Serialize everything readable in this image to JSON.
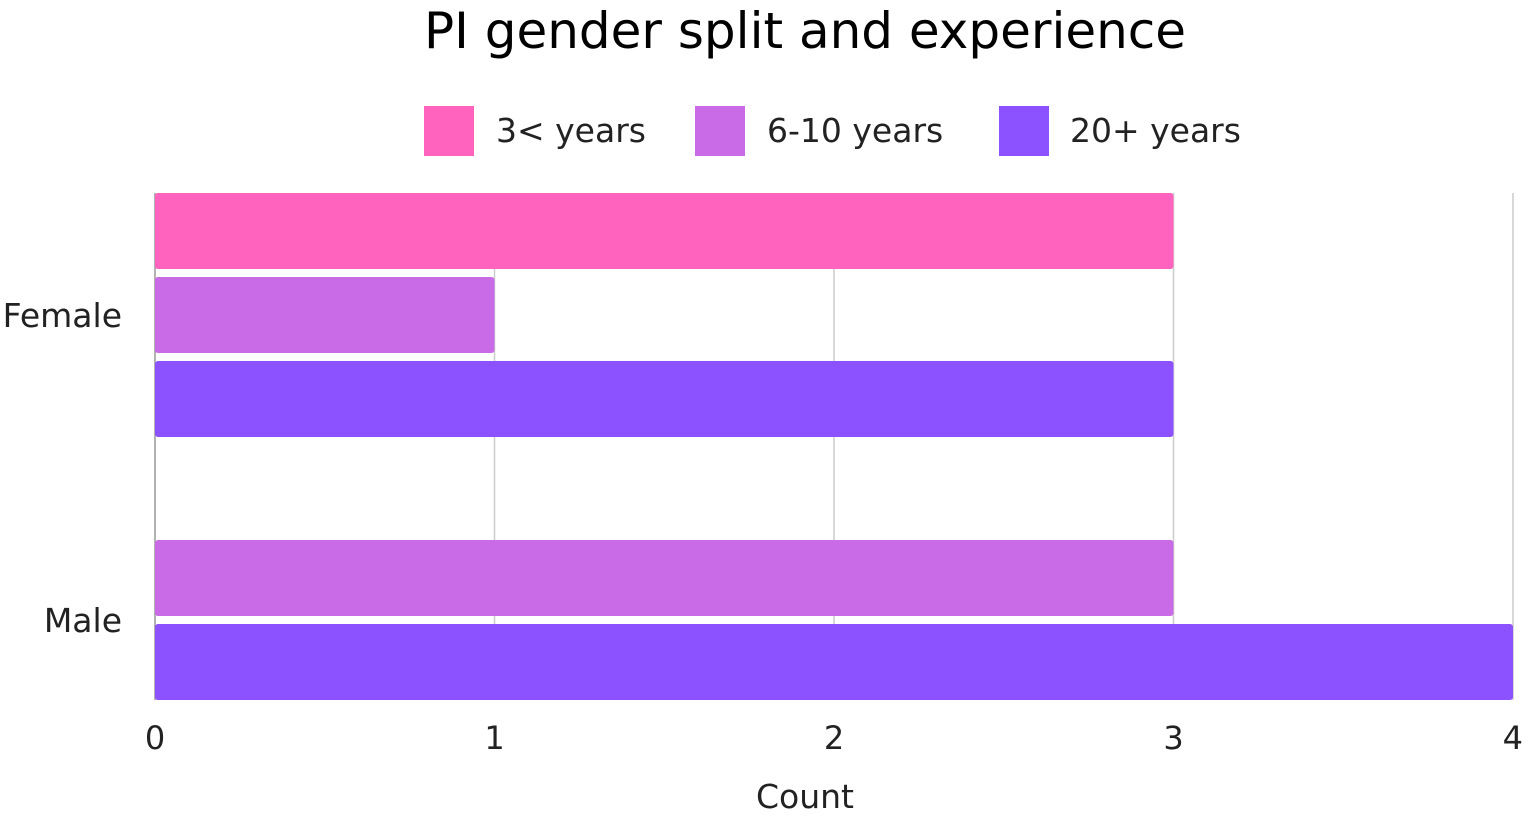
{
  "chart_data": {
    "type": "bar",
    "orientation": "horizontal",
    "title": "PI gender split and experience",
    "xlabel": "Count",
    "ylabel": "",
    "xlim": [
      0,
      4
    ],
    "x_ticks": [
      "0",
      "1",
      "2",
      "3",
      "4"
    ],
    "grid": true,
    "legend_position": "top",
    "categories": [
      "Female",
      "Male"
    ],
    "series": [
      {
        "name": "3< years",
        "color": "#ff63be",
        "values": [
          3,
          null
        ]
      },
      {
        "name": "6-10 years",
        "color": "#c96ae6",
        "values": [
          1,
          3
        ]
      },
      {
        "name": "20+ years",
        "color": "#8c52ff",
        "values": [
          3,
          4
        ]
      }
    ]
  }
}
